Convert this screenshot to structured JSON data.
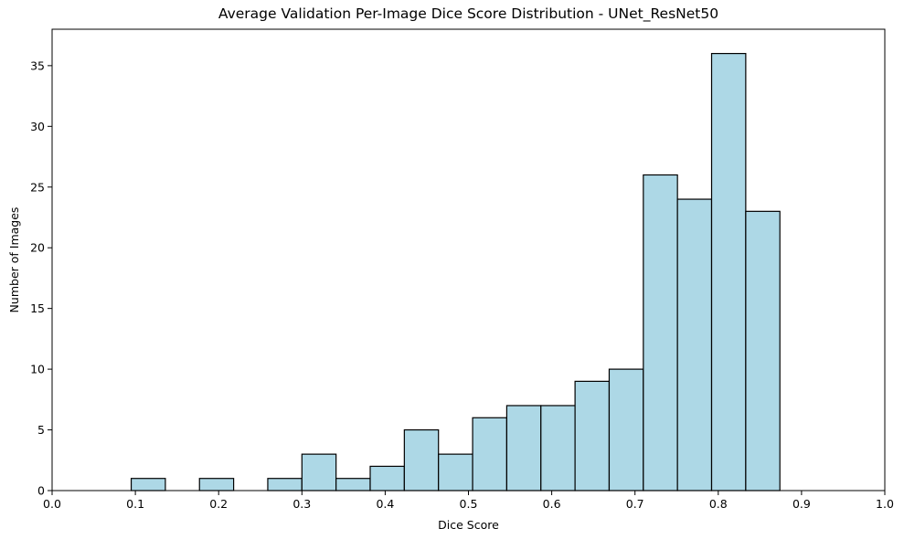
{
  "chart_data": {
    "type": "bar",
    "title": "Average Validation Per-Image Dice Score Distribution - UNet_ResNet50",
    "xlabel": "Dice Score",
    "ylabel": "Number of Images",
    "xlim": [
      0.0,
      1.0
    ],
    "ylim": [
      0,
      38
    ],
    "xticks": [
      "0.0",
      "0.1",
      "0.2",
      "0.3",
      "0.4",
      "0.5",
      "0.6",
      "0.7",
      "0.8",
      "0.9",
      "1.0"
    ],
    "yticks": [
      "0",
      "5",
      "10",
      "15",
      "20",
      "25",
      "30",
      "35"
    ],
    "bin_edges": [
      0.095,
      0.136,
      0.177,
      0.218,
      0.259,
      0.3,
      0.341,
      0.382,
      0.423,
      0.464,
      0.505,
      0.546,
      0.587,
      0.628,
      0.669,
      0.71,
      0.751,
      0.792,
      0.833,
      0.874,
      0.915
    ],
    "counts": [
      1,
      0,
      1,
      0,
      1,
      3,
      1,
      2,
      5,
      3,
      6,
      7,
      7,
      9,
      10,
      26,
      24,
      36,
      23,
      0
    ],
    "bar_color": "#add8e6",
    "edge_color": "#000000",
    "grid": false
  }
}
